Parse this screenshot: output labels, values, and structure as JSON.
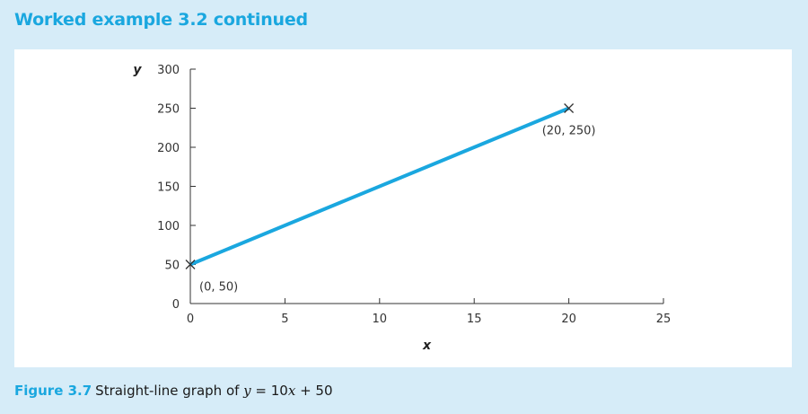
{
  "header": {
    "title": "Worked example 3.2 continued"
  },
  "caption": {
    "figure_number": "Figure 3.7",
    "text_before": "Straight-line graph of ",
    "equation_y": "y",
    "equation_mid": " = 10",
    "equation_x": "x",
    "equation_end": " + 50"
  },
  "chart_data": {
    "type": "line",
    "xlabel": "x",
    "ylabel": "y",
    "xlim": [
      0,
      25
    ],
    "ylim": [
      0,
      300
    ],
    "x_ticks": [
      0,
      5,
      10,
      15,
      20,
      25
    ],
    "y_ticks": [
      0,
      50,
      100,
      150,
      200,
      250,
      300
    ],
    "grid": false,
    "series": [
      {
        "x": [
          0,
          20
        ],
        "y": [
          50,
          250
        ],
        "color": "#1aa7df"
      }
    ],
    "markers": [
      {
        "x": 0,
        "y": 50,
        "label": "(0, 50)"
      },
      {
        "x": 20,
        "y": 250,
        "label": "(20, 250)"
      }
    ]
  }
}
